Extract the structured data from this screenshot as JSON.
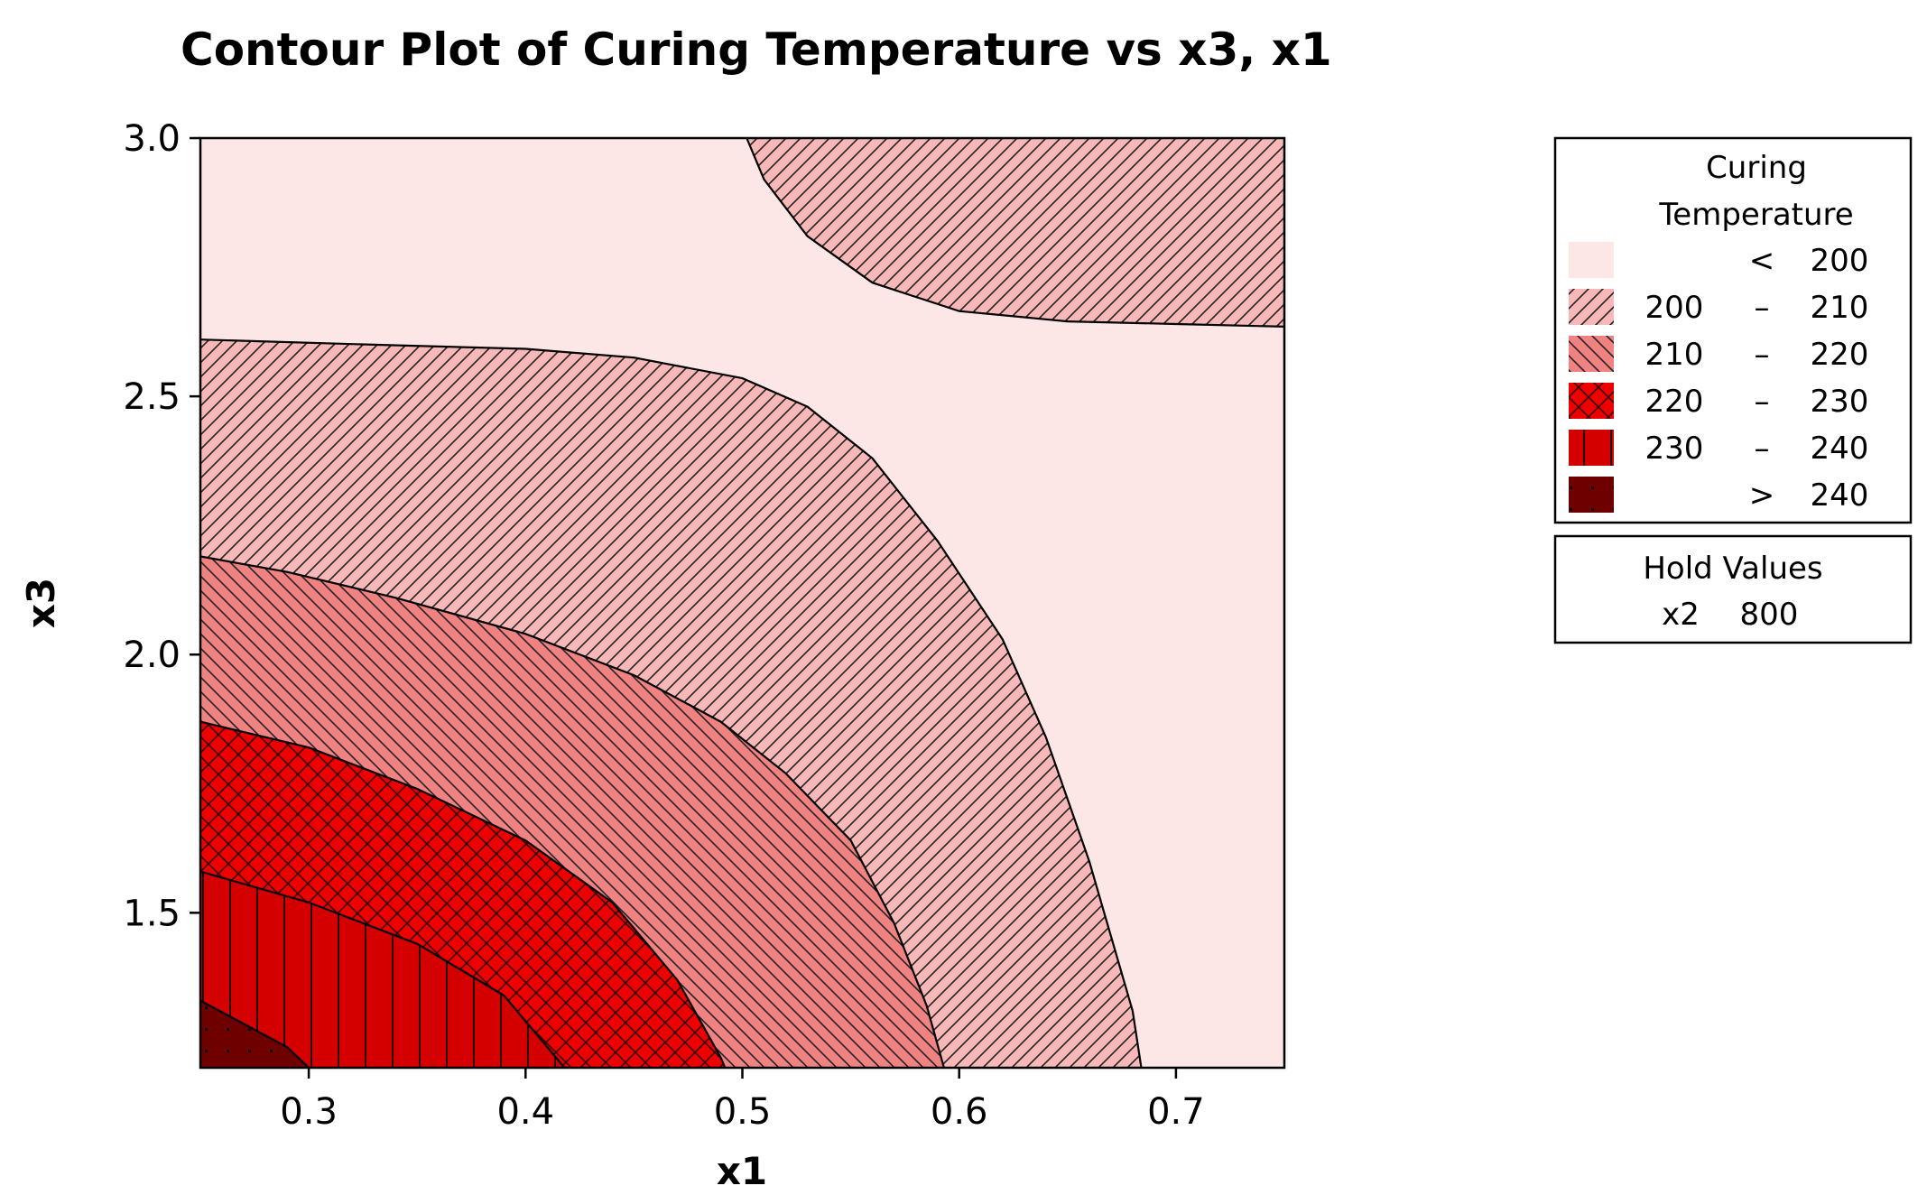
{
  "chart_data": {
    "type": "contour",
    "title": "Contour Plot of Curing Temperature vs x3, x1",
    "xlabel": "x1",
    "ylabel": "x3",
    "xlim": [
      0.25,
      0.75
    ],
    "ylim": [
      1.2,
      3.0
    ],
    "xticks": [
      {
        "value": 0.3,
        "label": "0.3"
      },
      {
        "value": 0.4,
        "label": "0.4"
      },
      {
        "value": 0.5,
        "label": "0.5"
      },
      {
        "value": 0.6,
        "label": "0.6"
      },
      {
        "value": 0.7,
        "label": "0.7"
      }
    ],
    "yticks": [
      {
        "value": 1.5,
        "label": "1.5"
      },
      {
        "value": 2.0,
        "label": "2.0"
      },
      {
        "value": 2.5,
        "label": "2.5"
      },
      {
        "value": 3.0,
        "label": "3.0"
      }
    ],
    "grid": false,
    "legend_position": "right",
    "legend": {
      "title_line1": "Curing",
      "title_line2": "Temperature",
      "entries": [
        {
          "low": "",
          "op": "<",
          "high": "200",
          "color": "#fde6e6",
          "pattern": "none"
        },
        {
          "low": "200",
          "op": "–",
          "high": "210",
          "color": "#f8b8b8",
          "pattern": "forward-diagonal"
        },
        {
          "low": "210",
          "op": "–",
          "high": "220",
          "color": "#f08282",
          "pattern": "back-diagonal"
        },
        {
          "low": "220",
          "op": "–",
          "high": "230",
          "color": "#ee0000",
          "pattern": "crosshatch"
        },
        {
          "low": "230",
          "op": "–",
          "high": "240",
          "color": "#d40000",
          "pattern": "vertical"
        },
        {
          "low": "",
          "op": ">",
          "high": "240",
          "color": "#6e0000",
          "pattern": "dots"
        }
      ]
    },
    "hold_values": {
      "title": "Hold Values",
      "variable": "x2",
      "value": "800"
    },
    "contours": [
      {
        "level": 200,
        "side": "upper-right",
        "points": [
          [
            0.502,
            3.0
          ],
          [
            0.51,
            2.92
          ],
          [
            0.53,
            2.81
          ],
          [
            0.56,
            2.72
          ],
          [
            0.6,
            2.665
          ],
          [
            0.65,
            2.645
          ],
          [
            0.7,
            2.64
          ],
          [
            0.75,
            2.635
          ]
        ]
      },
      {
        "level": 200,
        "side": "lower-left",
        "points": [
          [
            0.25,
            2.61
          ],
          [
            0.33,
            2.6
          ],
          [
            0.4,
            2.592
          ],
          [
            0.45,
            2.575
          ],
          [
            0.5,
            2.535
          ],
          [
            0.53,
            2.48
          ],
          [
            0.56,
            2.38
          ],
          [
            0.59,
            2.22
          ],
          [
            0.62,
            2.03
          ],
          [
            0.64,
            1.84
          ],
          [
            0.66,
            1.6
          ],
          [
            0.68,
            1.31
          ],
          [
            0.684,
            1.2
          ]
        ]
      },
      {
        "level": 210,
        "points": [
          [
            0.25,
            2.19
          ],
          [
            0.29,
            2.16
          ],
          [
            0.34,
            2.11
          ],
          [
            0.4,
            2.04
          ],
          [
            0.45,
            1.96
          ],
          [
            0.49,
            1.87
          ],
          [
            0.52,
            1.77
          ],
          [
            0.55,
            1.64
          ],
          [
            0.57,
            1.48
          ],
          [
            0.585,
            1.32
          ],
          [
            0.593,
            1.2
          ]
        ]
      },
      {
        "level": 220,
        "points": [
          [
            0.25,
            1.87
          ],
          [
            0.3,
            1.82
          ],
          [
            0.35,
            1.74
          ],
          [
            0.4,
            1.64
          ],
          [
            0.44,
            1.52
          ],
          [
            0.47,
            1.37
          ],
          [
            0.49,
            1.22
          ],
          [
            0.492,
            1.2
          ]
        ]
      },
      {
        "level": 230,
        "points": [
          [
            0.25,
            1.58
          ],
          [
            0.3,
            1.52
          ],
          [
            0.35,
            1.44
          ],
          [
            0.39,
            1.34
          ],
          [
            0.41,
            1.24
          ],
          [
            0.418,
            1.2
          ]
        ]
      },
      {
        "level": 240,
        "points": [
          [
            0.25,
            1.33
          ],
          [
            0.27,
            1.285
          ],
          [
            0.29,
            1.24
          ],
          [
            0.3,
            1.2
          ]
        ]
      }
    ]
  }
}
